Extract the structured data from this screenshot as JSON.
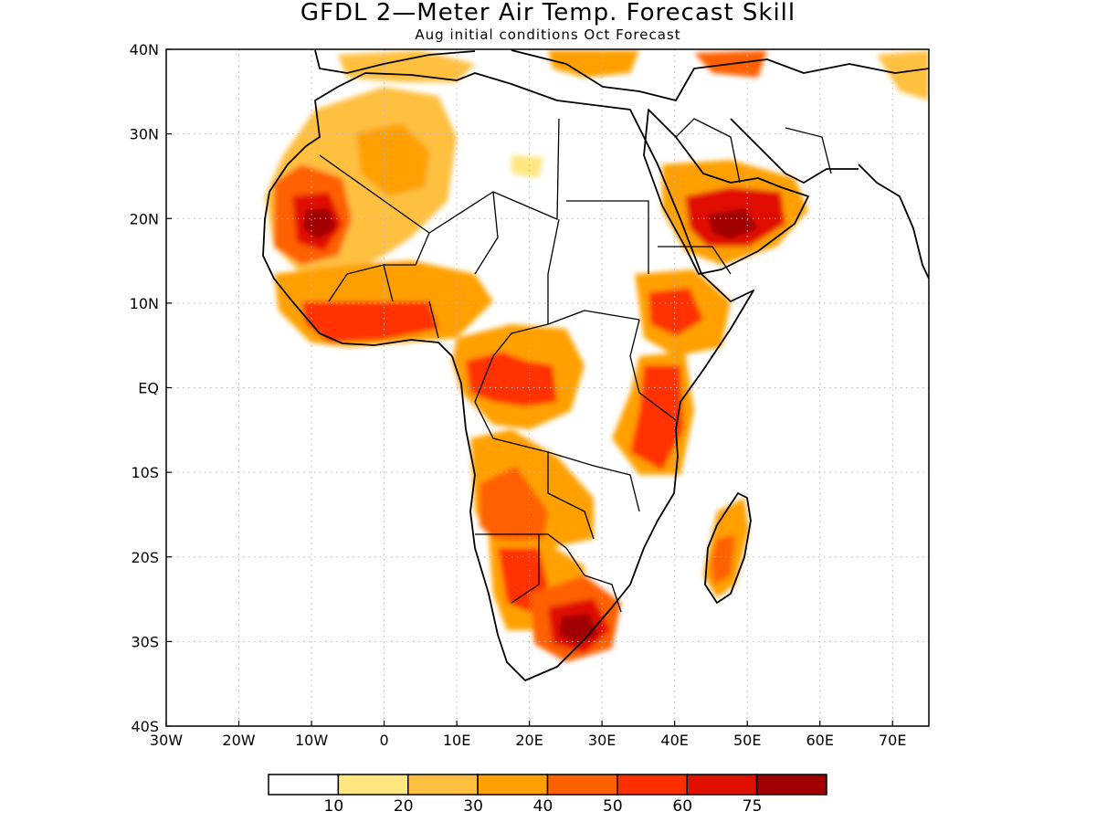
{
  "title": "GFDL 2—Meter Air Temp. Forecast Skill",
  "subtitle": "Aug initial conditions   Oct Forecast",
  "map": {
    "lon_range": [
      -30,
      75
    ],
    "lat_range": [
      -40,
      40
    ],
    "lon_labels": [
      "30W",
      "20W",
      "10W",
      "0",
      "10E",
      "20E",
      "30E",
      "40E",
      "50E",
      "60E",
      "70E"
    ],
    "lat_labels": [
      "40N",
      "30N",
      "20N",
      "10N",
      "EQ",
      "10S",
      "20S",
      "30S",
      "40S"
    ],
    "grid": "dotted"
  },
  "colorbar": {
    "levels": [
      "10",
      "20",
      "30",
      "40",
      "50",
      "60",
      "75"
    ],
    "colors": [
      "#ffffff",
      "#ffe680",
      "#ffc040",
      "#ffa000",
      "#ff6000",
      "#ff3000",
      "#e01000",
      "#a00000"
    ]
  },
  "skill_regions": [
    {
      "name": "west-sahara",
      "lon": -10,
      "lat": 19.5,
      "level": 7
    },
    {
      "name": "sahel-central",
      "lon": 2,
      "lat": 26,
      "level": 3
    },
    {
      "name": "guinea-coast",
      "lon": -3,
      "lat": 7,
      "level": 6
    },
    {
      "name": "central-africa",
      "lon": 18,
      "lat": 1,
      "level": 6
    },
    {
      "name": "ethiopia",
      "lon": 38,
      "lat": 9,
      "level": 6
    },
    {
      "name": "east-africa",
      "lon": 37,
      "lat": -5,
      "level": 6
    },
    {
      "name": "arabia",
      "lon": 48,
      "lat": 20,
      "level": 7
    },
    {
      "name": "angola-zambia",
      "lon": 17,
      "lat": -16,
      "level": 5
    },
    {
      "name": "namibia-botswana",
      "lon": 19,
      "lat": -24,
      "level": 5
    },
    {
      "name": "south-africa",
      "lon": 27,
      "lat": -28,
      "level": 7
    },
    {
      "name": "madagascar",
      "lon": 46,
      "lat": -20,
      "level": 5
    }
  ]
}
